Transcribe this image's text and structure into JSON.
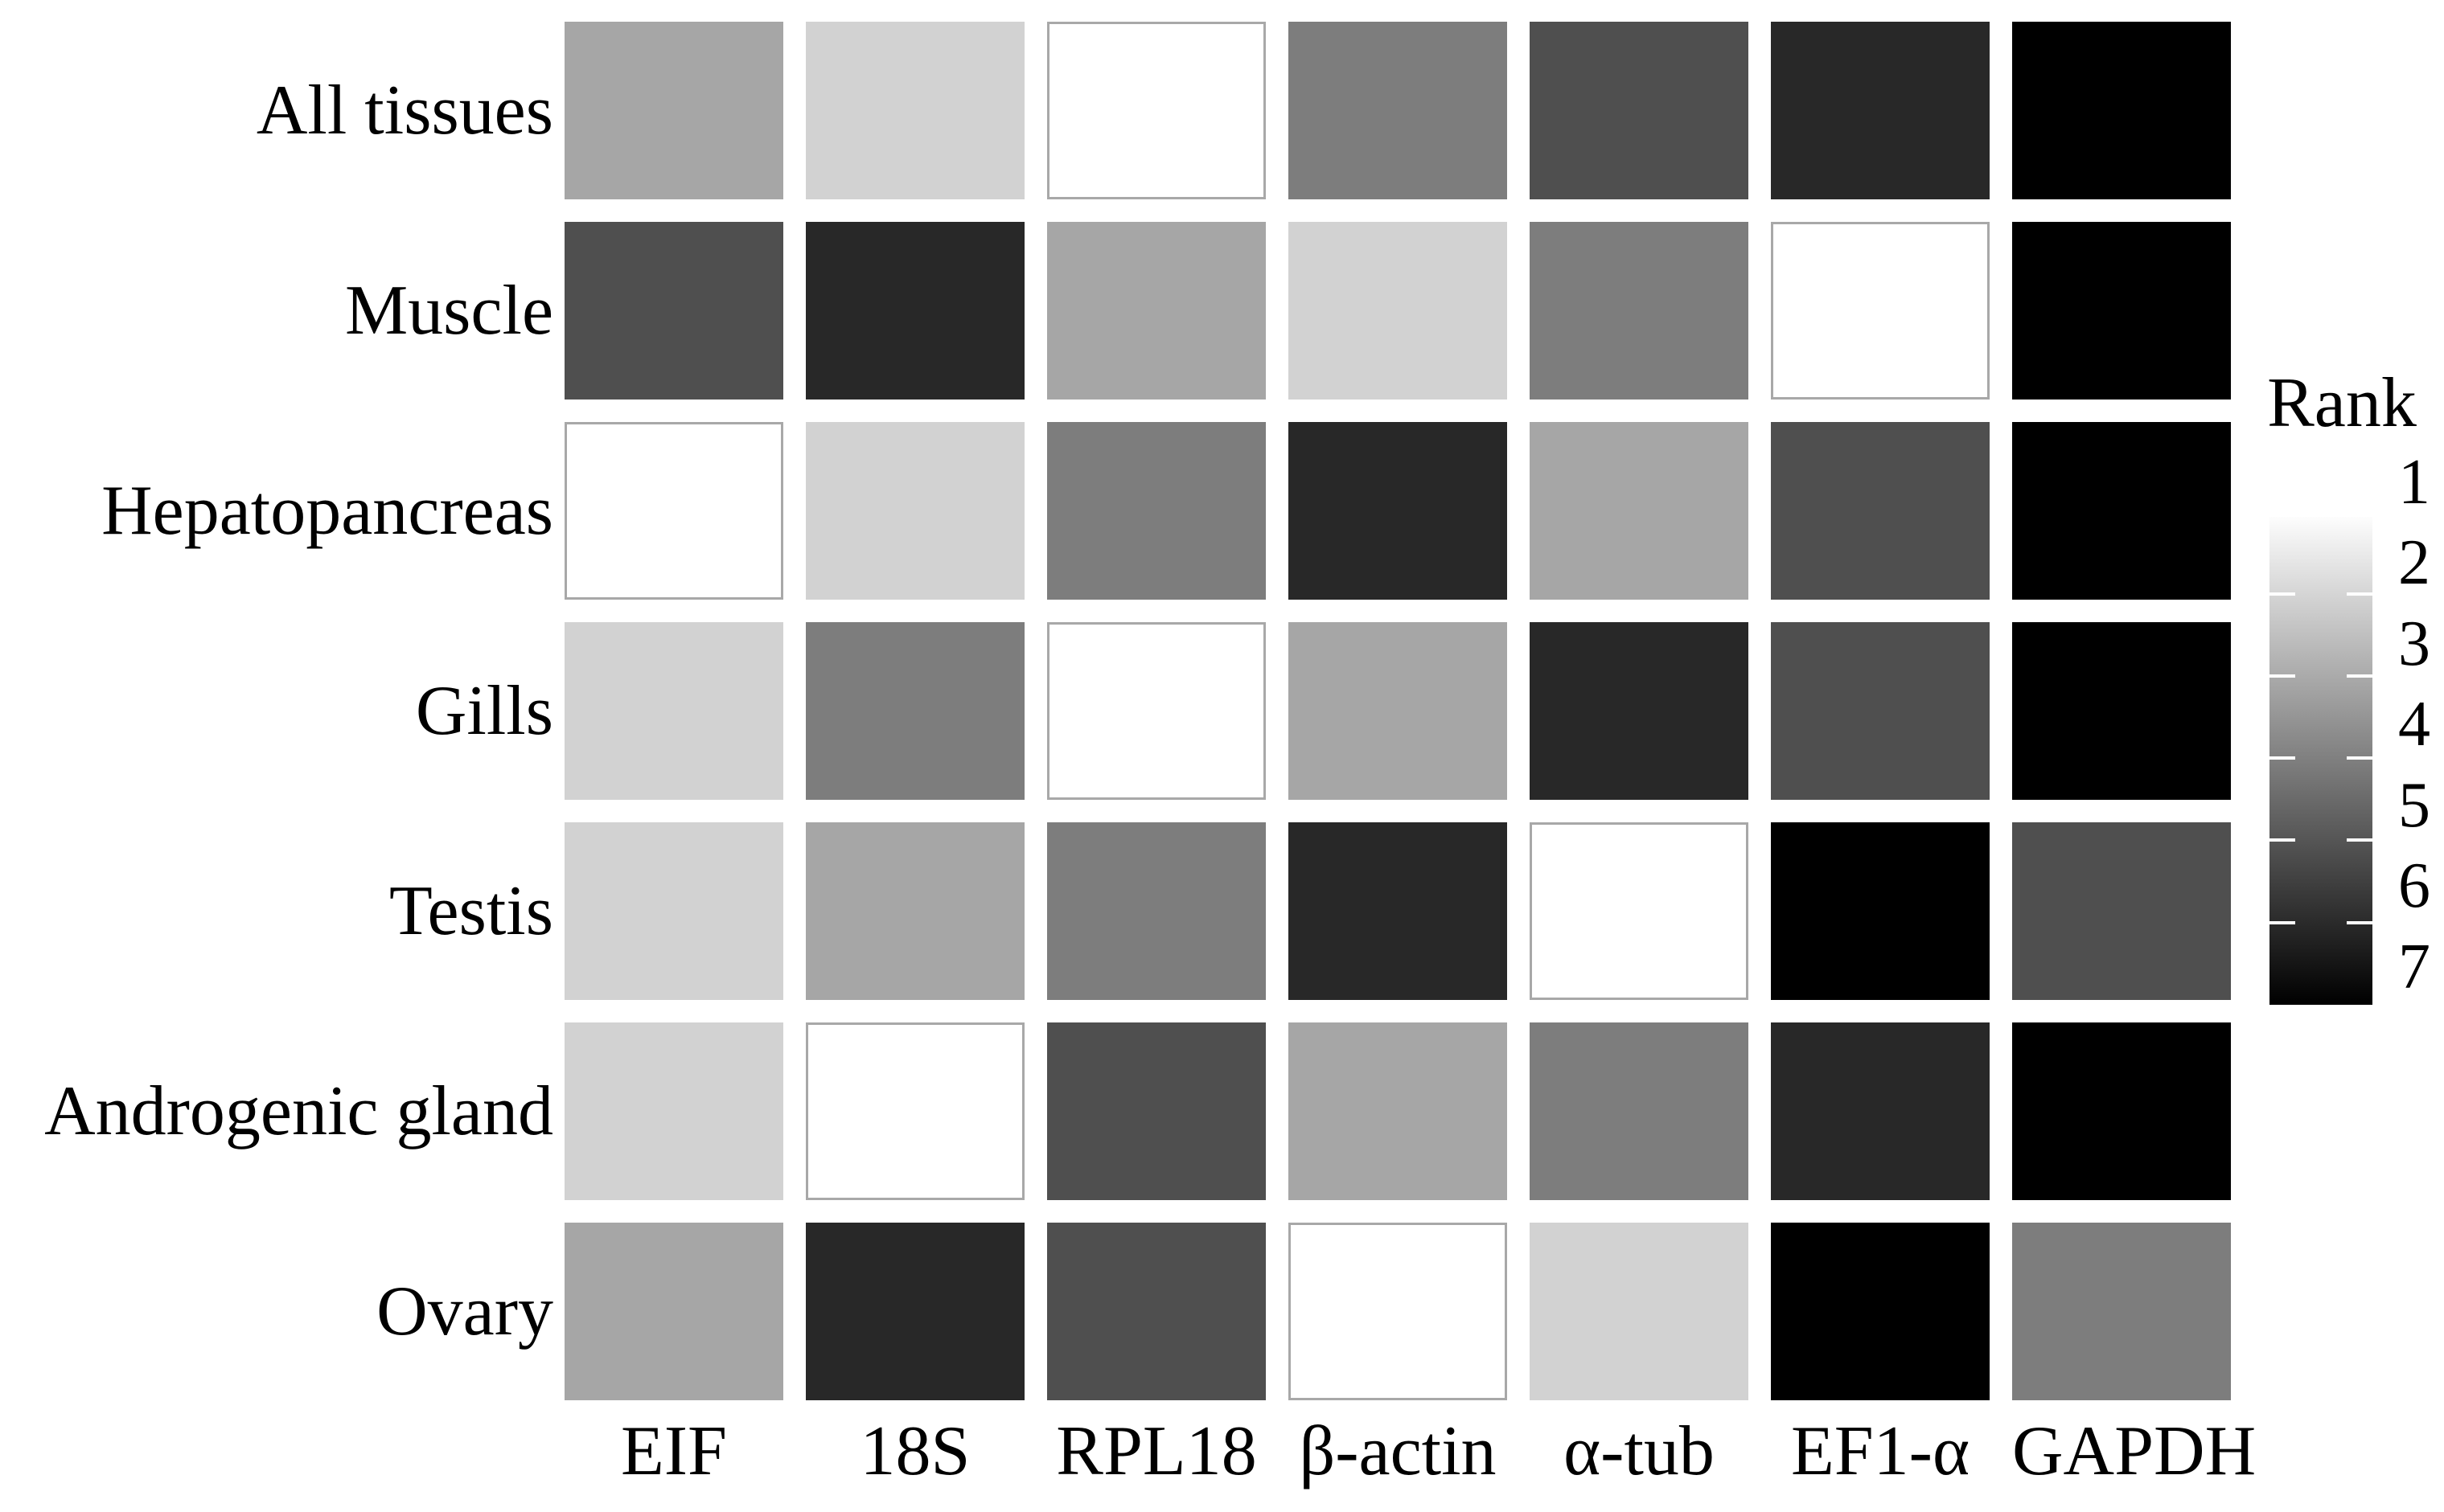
{
  "figure": {
    "background": "#ffffff",
    "text_color": "#000000"
  },
  "chart_data": {
    "type": "heatmap",
    "rows": [
      "All tissues",
      "Muscle",
      "Hepatopancreas",
      "Gills",
      "Testis",
      "Androgenic gland",
      "Ovary"
    ],
    "columns": [
      "EIF",
      "18S",
      "RPL18",
      "β-actin",
      "α-tub",
      "EF1-α",
      "GAPDH"
    ],
    "values": [
      [
        3,
        2,
        1,
        4,
        5,
        6,
        7
      ],
      [
        5,
        6,
        3,
        2,
        4,
        1,
        7
      ],
      [
        1,
        2,
        4,
        6,
        3,
        5,
        7
      ],
      [
        2,
        4,
        1,
        3,
        6,
        5,
        7
      ],
      [
        2,
        3,
        4,
        6,
        1,
        7,
        5
      ],
      [
        2,
        1,
        5,
        3,
        4,
        6,
        7
      ],
      [
        3,
        6,
        5,
        1,
        2,
        7,
        4
      ]
    ],
    "rank_palette": {
      "1": "#ffffff",
      "2": "#d2d2d2",
      "3": "#a6a6a6",
      "4": "#7d7d7d",
      "5": "#4f4f4f",
      "6": "#282828",
      "7": "#000000"
    },
    "rank1_cell_border_color": "#a8a8a8",
    "legend": {
      "title": "Rank",
      "min": 1,
      "max": 7,
      "position": "right",
      "tick_labels": [
        "1",
        "2",
        "3",
        "4",
        "5",
        "6",
        "7"
      ],
      "gradient_top": "#fdfdfd",
      "gradient_bottom": "#000000",
      "tick_color": "#ffffff"
    }
  }
}
